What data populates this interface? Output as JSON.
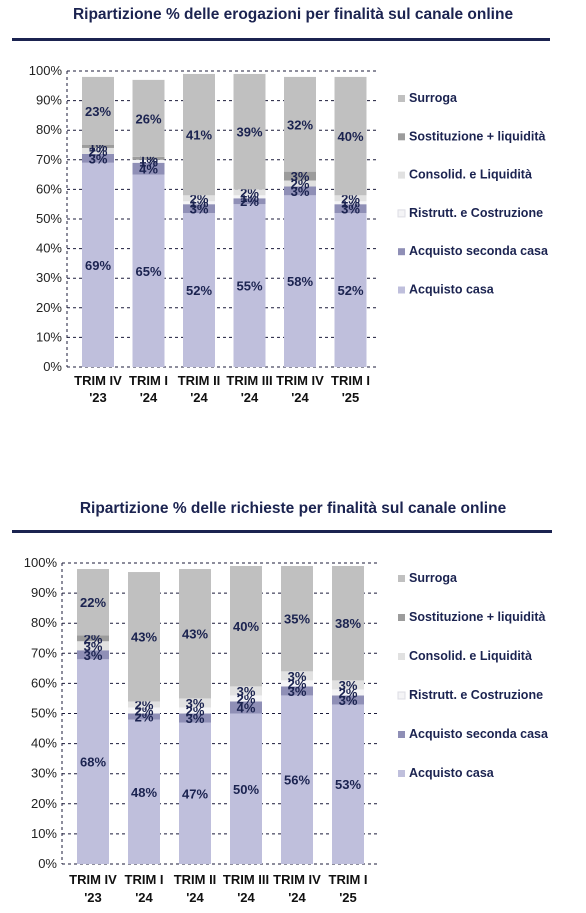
{
  "charts": [
    {
      "title": "Ripartizione % delle erogazioni per finalità sul canale online",
      "legend": [
        "Surroga",
        "Sostituzione + liquidità",
        "Consolid. e Liquidità",
        "Ristrutt. e Costruzione",
        "Acquisto seconda casa",
        "Acquisto casa"
      ]
    },
    {
      "title": "Ripartizione % delle richieste per finalità sul canale online",
      "legend": [
        "Surroga",
        "Sostituzione + liquidità",
        "Consolid. e Liquidità",
        "Ristrutt. e Costruzione",
        "Acquisto seconda casa",
        "Acquisto casa"
      ]
    }
  ],
  "colors": {
    "Acquisto casa": "#bfbfdc",
    "Acquisto seconda casa": "#8f8fb6",
    "Ristrutt. e Costruzione": "#f4f4f6",
    "Consolid. e Liquidità": "#e1e1e1",
    "Sostituzione + liquidità": "#9c9c9c",
    "Surroga": "#c0c0c0",
    "label": "#1b2350",
    "title_rule": "#1b2350"
  },
  "chart_data": [
    {
      "type": "bar",
      "stacked": true,
      "title": "Ripartizione % delle erogazioni per finalità sul canale online",
      "categories": [
        "TRIM IV '23",
        "TRIM I '24",
        "TRIM II '24",
        "TRIM III '24",
        "TRIM IV '24",
        "TRIM I '25"
      ],
      "category_lines": [
        [
          "TRIM IV",
          "'23"
        ],
        [
          "TRIM I",
          "'24"
        ],
        [
          "TRIM II",
          "'24"
        ],
        [
          "TRIM III",
          "'24"
        ],
        [
          "TRIM IV",
          "'24"
        ],
        [
          "TRIM I",
          "'25"
        ]
      ],
      "series": [
        {
          "name": "Acquisto casa",
          "values": [
            69,
            65,
            52,
            55,
            58,
            52
          ],
          "labels": [
            "69%",
            "65%",
            "52%",
            "55%",
            "58%",
            "52%"
          ]
        },
        {
          "name": "Acquisto seconda casa",
          "values": [
            3,
            4,
            3,
            2,
            3,
            3
          ],
          "labels": [
            "3%",
            "4%",
            "3%",
            "2%",
            "3%",
            "3%"
          ]
        },
        {
          "name": "Ristrutt. e Costruzione",
          "values": [
            0,
            1,
            1,
            1,
            0,
            1
          ],
          "labels": [
            "",
            "1%",
            "1%",
            "1%",
            "",
            "1%"
          ]
        },
        {
          "name": "Consolid. e Liquidità",
          "values": [
            2,
            0,
            2,
            2,
            2,
            2
          ],
          "labels": [
            "2%",
            "",
            "2%",
            "2%",
            "2%",
            "2%"
          ]
        },
        {
          "name": "Sostituzione + liquidità",
          "values": [
            1,
            1,
            0,
            0,
            3,
            0
          ],
          "labels": [
            "1%",
            "1%",
            "",
            "",
            "3%",
            ""
          ]
        },
        {
          "name": "Surroga",
          "values": [
            23,
            26,
            41,
            39,
            32,
            40
          ],
          "labels": [
            "23%",
            "26%",
            "41%",
            "39%",
            "32%",
            "40%"
          ]
        }
      ],
      "ylim": [
        0,
        100
      ],
      "yticks": [
        "0%",
        "10%",
        "20%",
        "30%",
        "40%",
        "50%",
        "60%",
        "70%",
        "80%",
        "90%",
        "100%"
      ],
      "grid": true,
      "legend_position": "right"
    },
    {
      "type": "bar",
      "stacked": true,
      "title": "Ripartizione % delle richieste per finalità sul canale online",
      "categories": [
        "TRIM IV '23",
        "TRIM I '24",
        "TRIM II '24",
        "TRIM III '24",
        "TRIM IV '24",
        "TRIM I '25"
      ],
      "category_lines": [
        [
          "TRIM IV",
          "'23"
        ],
        [
          "TRIM I",
          "'24"
        ],
        [
          "TRIM II",
          "'24"
        ],
        [
          "TRIM III",
          "'24"
        ],
        [
          "TRIM IV",
          "'24"
        ],
        [
          "TRIM I",
          "'25"
        ]
      ],
      "series": [
        {
          "name": "Acquisto casa",
          "values": [
            68,
            48,
            47,
            50,
            56,
            53
          ],
          "labels": [
            "68%",
            "48%",
            "47%",
            "50%",
            "56%",
            "53%"
          ]
        },
        {
          "name": "Acquisto seconda casa",
          "values": [
            3,
            2,
            3,
            4,
            3,
            3
          ],
          "labels": [
            "3%",
            "2%",
            "3%",
            "4%",
            "3%",
            "3%"
          ]
        },
        {
          "name": "Ristrutt. e Costruzione",
          "values": [
            0,
            2,
            2,
            2,
            2,
            2
          ],
          "labels": [
            "",
            "2%",
            "2%",
            "2%",
            "2%",
            "2%"
          ]
        },
        {
          "name": "Consolid. e Liquidità",
          "values": [
            3,
            2,
            3,
            3,
            3,
            3
          ],
          "labels": [
            "3%",
            "2%",
            "3%",
            "3%",
            "3%",
            "3%"
          ]
        },
        {
          "name": "Sostituzione + liquidità",
          "values": [
            2,
            0,
            0,
            0,
            0,
            0
          ],
          "labels": [
            "2%",
            "",
            "",
            "",
            "",
            ""
          ]
        },
        {
          "name": "Surroga",
          "values": [
            22,
            43,
            43,
            40,
            35,
            38
          ],
          "labels": [
            "22%",
            "43%",
            "43%",
            "40%",
            "35%",
            "38%"
          ]
        }
      ],
      "ylim": [
        0,
        100
      ],
      "yticks": [
        "0%",
        "10%",
        "20%",
        "30%",
        "40%",
        "50%",
        "60%",
        "70%",
        "80%",
        "90%",
        "100%"
      ],
      "grid": true,
      "legend_position": "right"
    }
  ]
}
